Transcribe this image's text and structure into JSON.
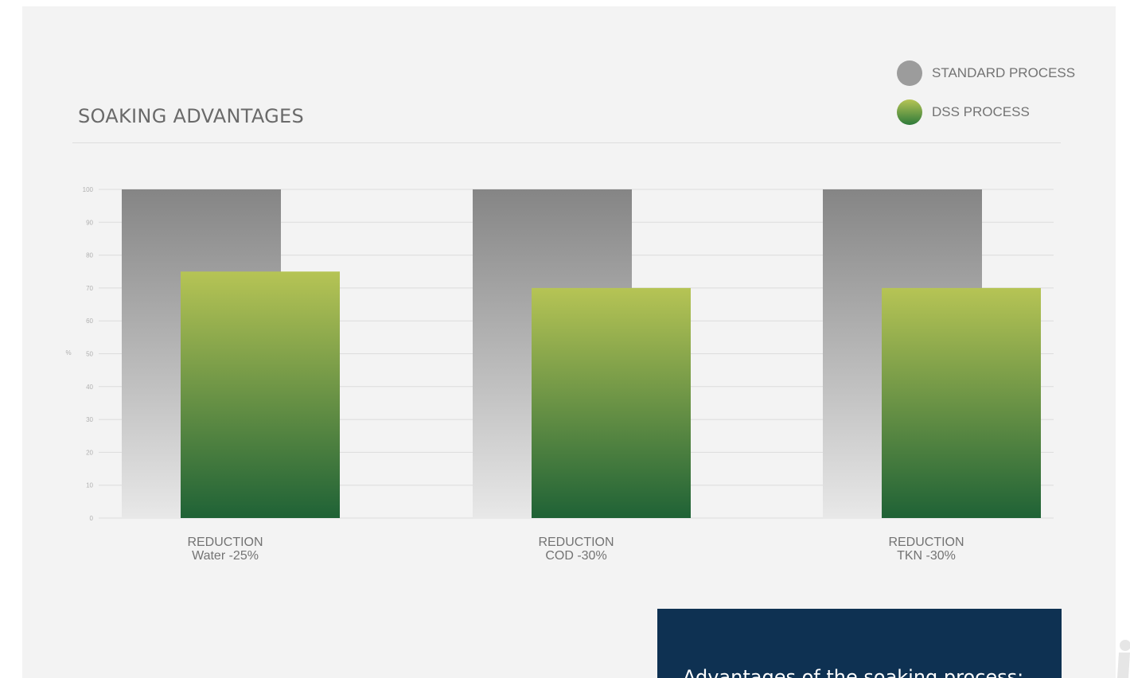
{
  "chart_data": {
    "type": "bar",
    "title": "SOAKING ADVANTAGES",
    "ylabel": "%",
    "ylim": [
      0,
      100
    ],
    "yticks": [
      0,
      10,
      20,
      30,
      40,
      50,
      60,
      70,
      80,
      90,
      100
    ],
    "categories": [
      {
        "line1": "REDUCTION",
        "line2": "Water -25%"
      },
      {
        "line1": "REDUCTION",
        "line2": "COD -30%"
      },
      {
        "line1": "REDUCTION",
        "line2": "TKN -30%"
      }
    ],
    "series": [
      {
        "name": "STANDARD PROCESS",
        "values": [
          100,
          100,
          100
        ]
      },
      {
        "name": "DSS PROCESS",
        "values": [
          75,
          70,
          70
        ]
      }
    ],
    "grid": true,
    "legend_position": "top-right"
  },
  "colors": {
    "standard_top": "#858585",
    "standard_bottom": "#e8e8e8",
    "dss_top": "#b6c455",
    "dss_bottom": "#1f6236",
    "info_box": "#0e3152"
  },
  "info_box": {
    "heading": "Advantages of the soaking process:"
  }
}
